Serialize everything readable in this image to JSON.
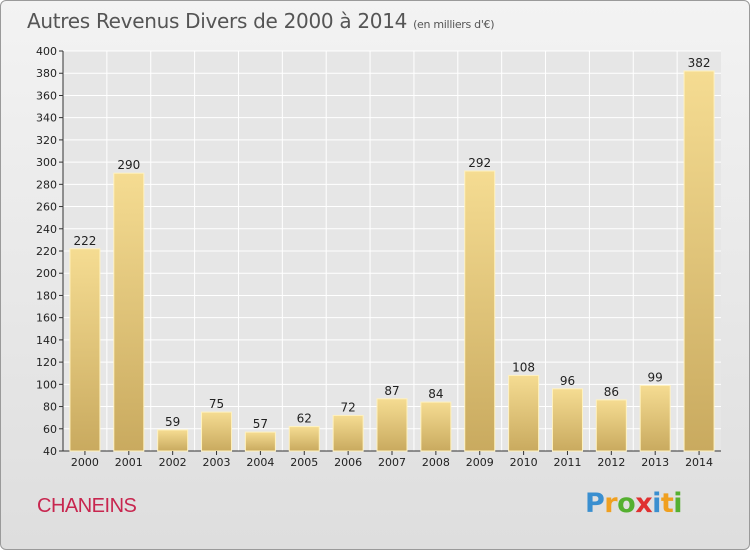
{
  "title": "Autres Revenus Divers de 2000 à 2014",
  "subtitle": "(en milliers d'€)",
  "location_name": "CHANEINS",
  "brand": {
    "letters": [
      "P",
      "r",
      "o",
      "x",
      "i",
      "t",
      "i"
    ],
    "colors": [
      "#3a8fd0",
      "#f0a020",
      "#55b030",
      "#e03030",
      "#3a8fd0",
      "#f0a020",
      "#55b030"
    ]
  },
  "chart_data": {
    "type": "bar",
    "title": "Autres Revenus Divers de 2000 à 2014",
    "subtitle": "(en milliers d'€)",
    "xlabel": "",
    "ylabel": "",
    "categories": [
      "2000",
      "2001",
      "2002",
      "2003",
      "2004",
      "2005",
      "2006",
      "2007",
      "2008",
      "2009",
      "2010",
      "2011",
      "2012",
      "2013",
      "2014"
    ],
    "values": [
      222,
      290,
      59,
      75,
      57,
      62,
      72,
      87,
      84,
      292,
      108,
      96,
      86,
      99,
      382
    ],
    "ylim": [
      40,
      400
    ],
    "yticks": [
      40,
      60,
      80,
      100,
      120,
      140,
      160,
      180,
      200,
      220,
      240,
      260,
      280,
      300,
      320,
      340,
      360,
      380,
      400
    ],
    "grid": true,
    "legend": "none",
    "colors": {
      "bar_light": "#f5dc92",
      "bar_dark": "#c9aa5f",
      "grid": "#ffffff"
    }
  }
}
